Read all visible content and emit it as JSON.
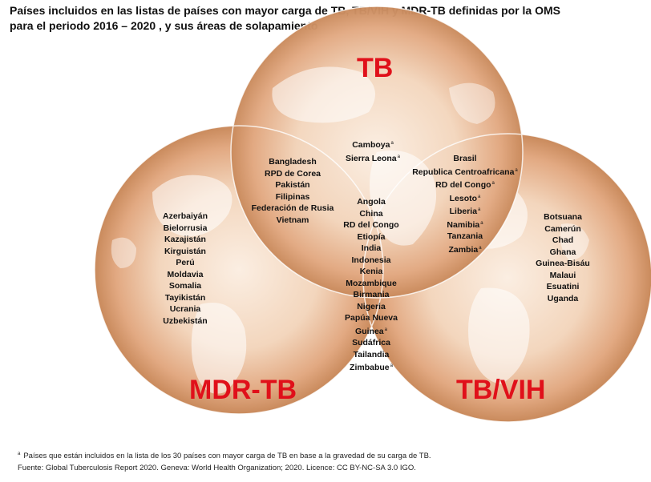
{
  "title": {
    "line1": "Países incluidos en las listas de países con mayor carga de TB, TB/VIH y MDR-TB definidas por la OMS",
    "line2": "para el periodo 2016 – 2020 , y sus áreas de solapamiento"
  },
  "labels": {
    "tb": "TB",
    "mdr_tb": "MDR-TB",
    "tb_vih": "TB/VIH"
  },
  "footnote_marker": "a",
  "regions": {
    "tb_only": [
      {
        "name": "Camboya",
        "note": "a"
      },
      {
        "name": "Sierra Leona",
        "note": "a"
      }
    ],
    "tb_mdr": [
      {
        "name": "Bangladesh",
        "note": ""
      },
      {
        "name": "RPD de Corea",
        "note": ""
      },
      {
        "name": "Pakistán",
        "note": ""
      },
      {
        "name": "Filipinas",
        "note": ""
      },
      {
        "name": "Federación de Rusia",
        "note": ""
      },
      {
        "name": "Vietnam",
        "note": ""
      }
    ],
    "tb_vih": [
      {
        "name": "Brasil",
        "note": ""
      },
      {
        "name": "Republica Centroafricana",
        "note": "a"
      },
      {
        "name": "RD del Congo",
        "note": "a"
      },
      {
        "name": "Lesoto",
        "note": "a"
      },
      {
        "name": "Liberia",
        "note": "a"
      },
      {
        "name": "Namibia",
        "note": "a"
      },
      {
        "name": "Tanzania",
        "note": ""
      },
      {
        "name": "Zambia",
        "note": "a"
      }
    ],
    "mdr_only": [
      {
        "name": "Azerbaiyán",
        "note": ""
      },
      {
        "name": "Bielorrusia",
        "note": ""
      },
      {
        "name": "Kazajistán",
        "note": ""
      },
      {
        "name": "Kirguistán",
        "note": ""
      },
      {
        "name": "Perú",
        "note": ""
      },
      {
        "name": "Moldavia",
        "note": ""
      },
      {
        "name": "Somalia",
        "note": ""
      },
      {
        "name": "Tayikistán",
        "note": ""
      },
      {
        "name": "Ucrania",
        "note": ""
      },
      {
        "name": "Uzbekistán",
        "note": ""
      }
    ],
    "all_three": [
      {
        "name": "Angola",
        "note": ""
      },
      {
        "name": "China",
        "note": ""
      },
      {
        "name": "RD del Congo",
        "note": ""
      },
      {
        "name": "Etiopía",
        "note": ""
      },
      {
        "name": "India",
        "note": ""
      },
      {
        "name": "Indonesia",
        "note": ""
      },
      {
        "name": "Kenia",
        "note": ""
      },
      {
        "name": "Mozambique",
        "note": ""
      },
      {
        "name": "Birmania",
        "note": ""
      },
      {
        "name": "Nigeria",
        "note": ""
      },
      {
        "name": "Papúa Nueva",
        "note": ""
      },
      {
        "name": "Guinea",
        "note": "a"
      },
      {
        "name": "Sudáfrica",
        "note": ""
      },
      {
        "name": "Tailandia",
        "note": ""
      },
      {
        "name": "Zimbabue",
        "note": "a"
      }
    ],
    "vih_only": [
      {
        "name": "Botsuana",
        "note": ""
      },
      {
        "name": "Camerún",
        "note": ""
      },
      {
        "name": "Chad",
        "note": ""
      },
      {
        "name": "Ghana",
        "note": ""
      },
      {
        "name": "Guinea-Bisáu",
        "note": ""
      },
      {
        "name": "Malaui",
        "note": ""
      },
      {
        "name": "Esuatini",
        "note": ""
      },
      {
        "name": "Uganda",
        "note": ""
      }
    ]
  },
  "footnote": {
    "line1": "Países que están incluidos en la lista de los 30 países con mayor carga de TB en base a la gravedad de su carga de TB.",
    "line2": "Fuente: Global Tuberculosis Report 2020. Geneva: World Health Organization; 2020. Licence: CC BY-NC-SA 3.0 IGO."
  },
  "colors": {
    "label_red": "#e0101a",
    "globe_light": "#fbeee2",
    "globe_mid": "#efc6a3",
    "globe_dark": "#c98a5c",
    "land": "#ffffff"
  }
}
